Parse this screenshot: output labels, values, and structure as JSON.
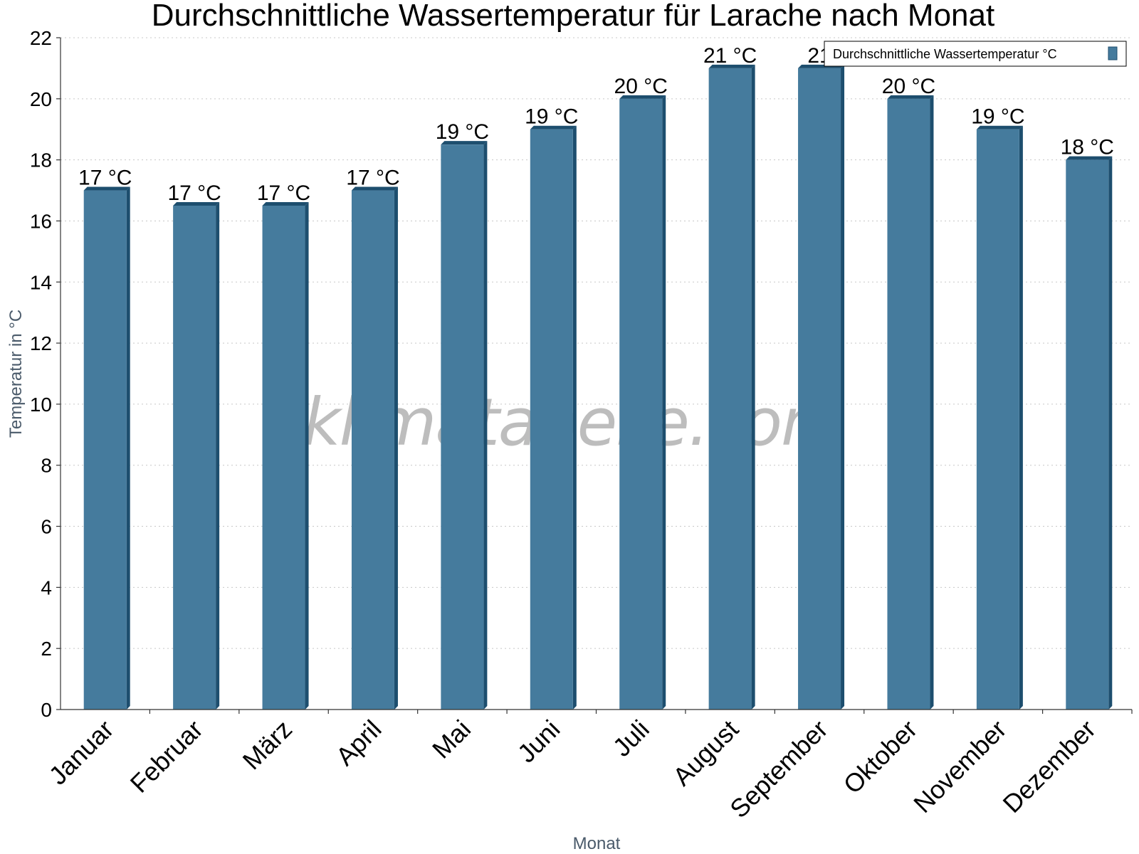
{
  "chart_data": {
    "type": "bar",
    "title": "Durchschnittliche Wassertemperatur für Larache nach Monat",
    "xlabel": "Monat",
    "ylabel": "Temperatur in °C",
    "ylim": [
      0,
      22
    ],
    "yticks": [
      "0",
      "2",
      "4",
      "6",
      "8",
      "10",
      "12",
      "14",
      "16",
      "18",
      "20",
      "22"
    ],
    "grid": true,
    "legend_position": "top-right",
    "categories": [
      "Januar",
      "Februar",
      "März",
      "April",
      "Mai",
      "Juni",
      "Juli",
      "August",
      "September",
      "Oktober",
      "November",
      "Dezember"
    ],
    "series": [
      {
        "name": "Durchschnittliche Wassertemperatur °C",
        "color": "#457b9d",
        "values": [
          17,
          16.5,
          16.5,
          17,
          18.5,
          19,
          20,
          21,
          21,
          20,
          19,
          18
        ],
        "labels": [
          "17 °C",
          "17 °C",
          "17 °C",
          "17 °C",
          "19 °C",
          "19 °C",
          "20 °C",
          "21 °C",
          "21",
          "20 °C",
          "19 °C",
          "18 °C"
        ]
      }
    ]
  },
  "watermark": "klimatabelle.com",
  "colors": {
    "bar": "#457b9d",
    "bar_edge": "#1d4e6e",
    "grid": "#c8c8c8"
  }
}
